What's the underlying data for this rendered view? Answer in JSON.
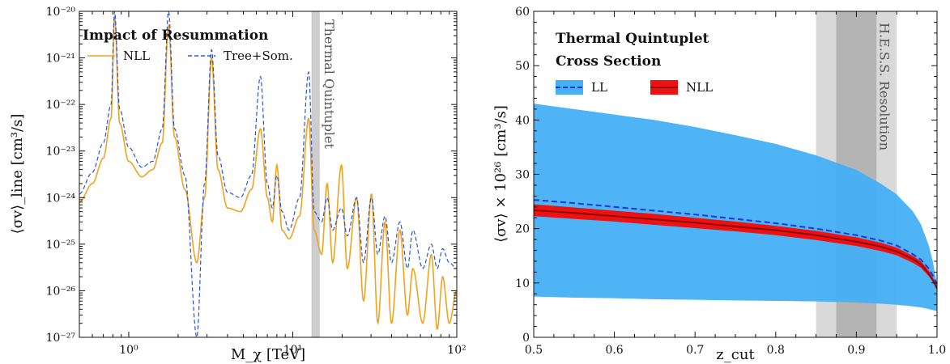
{
  "chart_data": [
    {
      "type": "line",
      "title": "",
      "legend_title": "Impact of Resummation",
      "xlabel": "M_χ [TeV]",
      "ylabel": "⟨σv⟩_line [cm³/s]",
      "xscale": "log",
      "yscale": "log",
      "xlim": [
        0.5,
        100
      ],
      "ylim": [
        1e-27,
        1e-20
      ],
      "x_tick_labels": [
        "10⁰",
        "10¹",
        "10²"
      ],
      "y_tick_labels": [
        "10⁻²⁷",
        "10⁻²⁶",
        "10⁻²⁵",
        "10⁻²⁴",
        "10⁻²³",
        "10⁻²²",
        "10⁻²¹",
        "10⁻²⁰"
      ],
      "legend_position": "top-left",
      "band": {
        "label": "Thermal Quintuplet",
        "x_range": [
          13.0,
          14.6
        ],
        "color": "#c8c8c8"
      },
      "resonances_tev": [
        0.82,
        1.75,
        3.2,
        6.35,
        8.0,
        12.5,
        16.2,
        19.8,
        24.5,
        30.2,
        36.5,
        45.0,
        54.0,
        70.0,
        82.0
      ],
      "series": [
        {
          "name": "NLL",
          "color": "#f0a31f",
          "style": "solid",
          "x": [
            0.5,
            0.6,
            0.7,
            0.78,
            0.82,
            0.88,
            1.0,
            1.2,
            1.4,
            1.6,
            1.75,
            1.9,
            2.2,
            2.6,
            2.9,
            3.2,
            3.5,
            4.0,
            4.8,
            5.6,
            6.35,
            7.0,
            7.5,
            8.0,
            8.6,
            9.5,
            11.0,
            12.5,
            13.5,
            15.0,
            16.2,
            17.5,
            19.8,
            21.5,
            24.5,
            27.0,
            30.2,
            33.0,
            36.5,
            40.0,
            45.0,
            50.0,
            54.0,
            62.0,
            70.0,
            76.0,
            82.0,
            90.0,
            100.0
          ],
          "y": [
            8e-25,
            2e-24,
            7e-24,
            5e-23,
            8e-21,
            4e-23,
            6e-24,
            2.8e-24,
            4e-24,
            1.5e-23,
            5e-21,
            2e-23,
            1.5e-24,
            4e-26,
            1e-24,
            1e-21,
            4e-24,
            6e-25,
            5e-25,
            1.5e-24,
            3e-23,
            1e-24,
            3e-25,
            5e-24,
            2e-25,
            1.3e-25,
            4e-25,
            5e-23,
            2e-25,
            6e-26,
            2e-24,
            4e-26,
            5e-24,
            3e-26,
            1e-24,
            6e-27,
            1.2e-24,
            2e-27,
            3e-25,
            2e-27,
            2e-25,
            3e-27,
            3e-26,
            2e-27,
            6e-26,
            1.5e-27,
            2e-26,
            2e-27,
            1e-26
          ]
        },
        {
          "name": "Tree+Som.",
          "color": "#2b55d6",
          "style": "dashed",
          "x": [
            0.5,
            0.6,
            0.7,
            0.78,
            0.82,
            0.88,
            1.0,
            1.2,
            1.4,
            1.6,
            1.75,
            1.9,
            2.2,
            2.6,
            2.9,
            3.2,
            3.5,
            4.0,
            4.8,
            5.6,
            6.35,
            7.0,
            7.5,
            8.0,
            8.6,
            9.5,
            11.0,
            12.5,
            13.5,
            15.0,
            16.2,
            17.5,
            19.8,
            21.5,
            24.5,
            27.0,
            30.2,
            33.0,
            36.5,
            40.0,
            45.0,
            50.0,
            54.0,
            62.0,
            70.0,
            76.0,
            82.0,
            90.0,
            100.0
          ],
          "y": [
            1.2e-24,
            3.5e-24,
            1.5e-23,
            1e-22,
            1e-20,
            8e-23,
            1.2e-23,
            4.5e-24,
            6e-24,
            3e-23,
            1e-20,
            3e-23,
            3e-24,
            1e-27,
            2e-24,
            1.5e-21,
            8e-24,
            1.3e-24,
            1e-24,
            3e-24,
            4e-22,
            2e-24,
            6e-25,
            3e-24,
            5e-25,
            2e-25,
            1e-24,
            5e-22,
            5e-25,
            3e-25,
            1e-24,
            2e-25,
            6e-25,
            1.5e-25,
            1e-24,
            4e-26,
            1e-24,
            6e-26,
            4e-25,
            4e-26,
            3e-25,
            3e-26,
            2e-25,
            3e-26,
            1e-25,
            3e-26,
            8e-26,
            4e-26,
            3e-26
          ]
        }
      ]
    },
    {
      "type": "area",
      "title": "",
      "legend_title": "Thermal Quintuplet Cross Section",
      "xlabel": "z_cut",
      "ylabel": "⟨σv⟩ × 10²⁶ [cm³/s]",
      "xlim": [
        0.5,
        1.0
      ],
      "ylim": [
        0,
        60
      ],
      "x_ticks": [
        0.5,
        0.6,
        0.7,
        0.8,
        0.9,
        1.0
      ],
      "y_ticks": [
        0,
        10,
        20,
        30,
        40,
        50,
        60
      ],
      "legend_position": "top-left",
      "bands": [
        {
          "label": "",
          "x_range": [
            0.85,
            0.95
          ],
          "color": "#d9d9d9"
        },
        {
          "label": "H.E.S.S. Resolution",
          "x_range": [
            0.875,
            0.925
          ],
          "color": "#b4b4b4"
        }
      ],
      "x": [
        0.5,
        0.55,
        0.6,
        0.65,
        0.7,
        0.75,
        0.8,
        0.85,
        0.9,
        0.93,
        0.95,
        0.97,
        0.98,
        0.99,
        0.995,
        1.0
      ],
      "series": [
        {
          "name": "LL",
          "role": "band",
          "color": "#45b0f5",
          "upper": [
            43,
            42,
            41,
            40,
            38.7,
            37.2,
            35.6,
            33.5,
            30.8,
            28.3,
            26.3,
            23.2,
            20.8,
            16.8,
            13.8,
            9.5
          ],
          "lower": [
            7.5,
            7.3,
            7.2,
            7.0,
            6.9,
            6.8,
            6.7,
            6.6,
            6.4,
            6.2,
            6.0,
            5.7,
            5.5,
            5.2,
            5.0,
            4.8
          ]
        },
        {
          "name": "LL",
          "role": "central",
          "color": "#1f36d6",
          "style": "dashed",
          "y": [
            25.3,
            24.7,
            24.0,
            23.3,
            22.6,
            21.8,
            21.0,
            20.0,
            18.8,
            17.8,
            16.9,
            15.3,
            14.3,
            12.6,
            11.3,
            9.8
          ]
        },
        {
          "name": "NLL",
          "role": "band",
          "color": "#ee1111",
          "upper": [
            24.5,
            23.9,
            23.3,
            22.7,
            22.0,
            21.3,
            20.5,
            19.6,
            18.4,
            17.4,
            16.5,
            15.0,
            14.0,
            12.2,
            10.9,
            9.3
          ],
          "lower": [
            22.3,
            21.8,
            21.3,
            20.7,
            20.1,
            19.5,
            18.8,
            17.9,
            16.8,
            15.9,
            15.1,
            13.7,
            12.8,
            11.2,
            10.1,
            8.7
          ]
        },
        {
          "name": "NLL",
          "role": "central",
          "color": "#8a0b0b",
          "style": "solid",
          "y": [
            23.4,
            22.9,
            22.3,
            21.7,
            21.1,
            20.4,
            19.7,
            18.8,
            17.6,
            16.7,
            15.8,
            14.4,
            13.4,
            11.7,
            10.5,
            9.0
          ]
        }
      ]
    }
  ]
}
